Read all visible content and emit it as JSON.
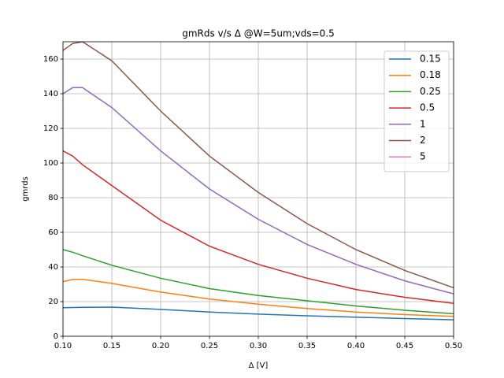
{
  "chart_data": {
    "type": "line",
    "title": "gmRds v/s Δ @W=5um;vds=0.5",
    "xlabel": "Δ [V]",
    "ylabel": "gmrds",
    "x": [
      0.1,
      0.11,
      0.12,
      0.15,
      0.2,
      0.25,
      0.3,
      0.35,
      0.4,
      0.45,
      0.5
    ],
    "series": [
      {
        "name": "0.15",
        "color": "#1f77b4",
        "values": [
          16.5,
          16.6,
          16.7,
          16.8,
          15.5,
          14,
          12.8,
          11.8,
          11,
          10.2,
          9.5
        ]
      },
      {
        "name": "0.18",
        "color": "#ff7f0e",
        "values": [
          31.5,
          32.8,
          32.9,
          30.5,
          25.5,
          21.5,
          18.5,
          16,
          14,
          12.5,
          11.5
        ]
      },
      {
        "name": "0.25",
        "color": "#2ca02c",
        "values": [
          50,
          48.5,
          46.5,
          41,
          33.5,
          27.5,
          23.5,
          20.5,
          17.5,
          15,
          13
        ]
      },
      {
        "name": "0.5",
        "color": "#d62728",
        "values": [
          107,
          104,
          99,
          87,
          67,
          52,
          41.5,
          33.5,
          27,
          22.5,
          19
        ]
      },
      {
        "name": "1",
        "color": "#9467bd",
        "values": [
          140,
          143.5,
          143.5,
          132,
          107,
          85,
          67.5,
          53,
          41.5,
          32,
          24.5
        ]
      },
      {
        "name": "2",
        "color": "#8c564b",
        "values": [
          165,
          169,
          170,
          159,
          130,
          104,
          83,
          65,
          50,
          38,
          28
        ]
      },
      {
        "name": "5",
        "color": "#e377c2",
        "values": [
          null,
          null,
          null,
          null,
          null,
          null,
          null,
          null,
          null,
          null,
          null
        ]
      }
    ],
    "xlim": [
      0.1,
      0.5
    ],
    "xticks": [
      {
        "value": 0.1,
        "label": "0.10"
      },
      0.15,
      {
        "value": 0.2,
        "label": "0.20"
      },
      0.25,
      {
        "value": 0.3,
        "label": "0.30"
      },
      0.35,
      {
        "value": 0.4,
        "label": "0.40"
      },
      0.45,
      {
        "value": 0.5,
        "label": "0.50"
      }
    ],
    "ylim": [
      0,
      170
    ],
    "yticks": [
      0,
      20,
      40,
      60,
      80,
      100,
      120,
      140,
      160
    ],
    "grid": true,
    "legend": "upper right"
  }
}
